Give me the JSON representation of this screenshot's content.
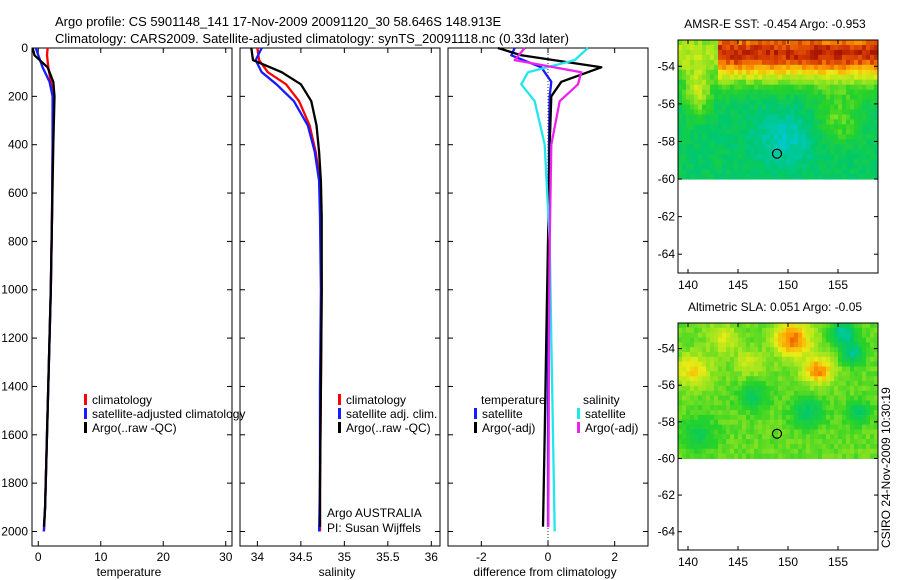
{
  "title": {
    "line1": "Argo profile: CS 5901148_141 17-Nov-2009 20091120_30 58.646S 148.913E",
    "line2": "Climatology: CARS2009. Satellite-adjusted climatology: synTS_20091118.nc (0.33d later)"
  },
  "credit": {
    "line1": "Argo AUSTRALIA",
    "line2": "PI: Susan Wijffels"
  },
  "stamp": "CSIRO 24-Nov-2009 10:30:19",
  "colors": {
    "red": "#ff0000",
    "blue": "#1a1aff",
    "black": "#000000",
    "cyan": "#22e6ee",
    "magenta": "#ee22ee"
  },
  "chart_data": [
    {
      "type": "line",
      "name": "temperature",
      "xlabel": "temperature",
      "xlim": [
        -1,
        31
      ],
      "ylim": [
        2060,
        0
      ],
      "xticks": [
        0,
        10,
        20,
        30
      ],
      "yticks": [
        0,
        200,
        400,
        600,
        800,
        1000,
        1200,
        1400,
        1600,
        1800,
        2000
      ],
      "legend": [
        "climatology",
        "satellite-adjusted climatology",
        "Argo(..raw -QC)"
      ],
      "series": [
        {
          "name": "climatology",
          "color": "red",
          "x": [
            1.5,
            1.4,
            1.6,
            2.0,
            2.3,
            2.3,
            2.2,
            2.0,
            1.7,
            1.4,
            1.1,
            0.9
          ],
          "y": [
            0,
            30,
            80,
            140,
            200,
            400,
            700,
            1000,
            1300,
            1600,
            1900,
            2000
          ]
        },
        {
          "name": "satellite-adjusted climatology",
          "color": "blue",
          "x": [
            -0.4,
            0.0,
            0.7,
            1.8,
            2.3,
            2.3,
            2.2,
            2.0,
            1.7,
            1.4,
            1.1,
            0.9
          ],
          "y": [
            0,
            30,
            80,
            140,
            200,
            400,
            700,
            1000,
            1300,
            1600,
            1900,
            2000
          ]
        },
        {
          "name": "Argo(..raw -QC)",
          "color": "black",
          "x": [
            -0.9,
            -0.6,
            1.5,
            2.4,
            2.6,
            2.4,
            2.2,
            2.0,
            1.7,
            1.4,
            1.1,
            0.9
          ],
          "y": [
            0,
            30,
            80,
            140,
            200,
            400,
            700,
            1000,
            1300,
            1600,
            1900,
            1980
          ]
        }
      ]
    },
    {
      "type": "line",
      "name": "salinity",
      "xlabel": "salinity",
      "xlim": [
        33.8,
        36.1
      ],
      "ylim": [
        2060,
        0
      ],
      "xticks": [
        34,
        34.5,
        35,
        35.5,
        36
      ],
      "xticklabels": [
        "34",
        "34.5",
        "35",
        "35.5",
        "36"
      ],
      "yticks": [
        0,
        200,
        400,
        600,
        800,
        1000,
        1200,
        1400,
        1600,
        1800,
        2000
      ],
      "legend": [
        "climatology",
        "satellite adj. clim.",
        "Argo(..raw -QC)"
      ],
      "series": [
        {
          "name": "climatology",
          "color": "red",
          "x": [
            34.0,
            34.02,
            34.12,
            34.33,
            34.48,
            34.6,
            34.67,
            34.72,
            34.73,
            34.74,
            34.73,
            34.72,
            34.72
          ],
          "y": [
            0,
            50,
            100,
            150,
            220,
            320,
            430,
            550,
            700,
            1000,
            1400,
            1800,
            2000
          ]
        },
        {
          "name": "satellite adj. clim.",
          "color": "blue",
          "x": [
            34.05,
            33.98,
            34.05,
            34.22,
            34.42,
            34.58,
            34.66,
            34.71,
            34.72,
            34.73,
            34.72,
            34.72,
            34.71
          ],
          "y": [
            0,
            50,
            100,
            150,
            220,
            320,
            430,
            550,
            700,
            1000,
            1400,
            1800,
            2000
          ]
        },
        {
          "name": "Argo(..raw -QC)",
          "color": "black",
          "x": [
            33.93,
            33.95,
            34.28,
            34.5,
            34.62,
            34.68,
            34.71,
            34.73,
            34.74,
            34.74,
            34.73,
            34.72,
            34.72
          ],
          "y": [
            0,
            50,
            100,
            150,
            220,
            320,
            430,
            550,
            700,
            1000,
            1400,
            1800,
            1980
          ]
        }
      ]
    },
    {
      "type": "line",
      "name": "difference",
      "xlabel": "difference from climatology",
      "xlim": [
        -3,
        3
      ],
      "ylim": [
        2060,
        0
      ],
      "xticks": [
        -2,
        0,
        2
      ],
      "yticks": [
        0,
        200,
        400,
        600,
        800,
        1000,
        1200,
        1400,
        1600,
        1800,
        2000
      ],
      "legend_headers": [
        "temperature",
        "salinity"
      ],
      "legend": [
        "satellite",
        "Argo(-adj)",
        "satellite",
        "Argo(-adj)"
      ],
      "series": [
        {
          "name": "temperature satellite",
          "color": "blue",
          "x": [
            -1.0,
            -1.1,
            -0.2,
            0.1,
            0.05,
            0.03,
            0.02,
            0.0,
            0.0,
            0.0
          ],
          "y": [
            0,
            30,
            80,
            140,
            200,
            400,
            800,
            1200,
            1600,
            1980
          ]
        },
        {
          "name": "temperature Argo(-adj)",
          "color": "black",
          "x": [
            -1.5,
            -0.8,
            1.6,
            0.4,
            0.1,
            0.05,
            0.0,
            -0.05,
            -0.1,
            -0.15
          ],
          "y": [
            0,
            30,
            80,
            140,
            200,
            400,
            800,
            1200,
            1600,
            1980
          ]
        },
        {
          "name": "salinity satellite",
          "color": "cyan",
          "x": [
            1.2,
            0.8,
            -0.6,
            -0.8,
            -0.4,
            -0.1,
            0.05,
            0.1,
            0.15,
            0.2
          ],
          "y": [
            0,
            50,
            100,
            150,
            220,
            400,
            800,
            1200,
            1600,
            2000
          ]
        },
        {
          "name": "salinity Argo(-adj)",
          "color": "magenta",
          "x": [
            -0.7,
            -1.0,
            1.0,
            0.9,
            0.35,
            0.1,
            0.05,
            0.03,
            0.02,
            0.01
          ],
          "y": [
            0,
            50,
            100,
            150,
            220,
            400,
            800,
            1200,
            1600,
            1980
          ]
        }
      ]
    },
    {
      "type": "heatmap",
      "name": "sst-map",
      "title": "AMSR-E SST: -0.454 Argo: -0.953",
      "xlim": [
        139,
        159
      ],
      "ylim": [
        -65,
        -52.6
      ],
      "xticks": [
        140,
        145,
        150,
        155
      ],
      "yticks": [
        -54,
        -56,
        -58,
        -60,
        -62,
        -64
      ],
      "data_lat_range": [
        -60,
        -52.6
      ],
      "marker": {
        "lon": 148.9,
        "lat": -58.65
      }
    },
    {
      "type": "heatmap",
      "name": "sla-map",
      "title": "Altimetric SLA: 0.051 Argo: -0.05",
      "xlim": [
        139,
        159
      ],
      "ylim": [
        -65,
        -52.6
      ],
      "xticks": [
        140,
        145,
        150,
        155
      ],
      "yticks": [
        -54,
        -56,
        -58,
        -60,
        -62,
        -64
      ],
      "data_lat_range": [
        -60,
        -52.6
      ],
      "marker": {
        "lon": 148.9,
        "lat": -58.65
      }
    }
  ]
}
